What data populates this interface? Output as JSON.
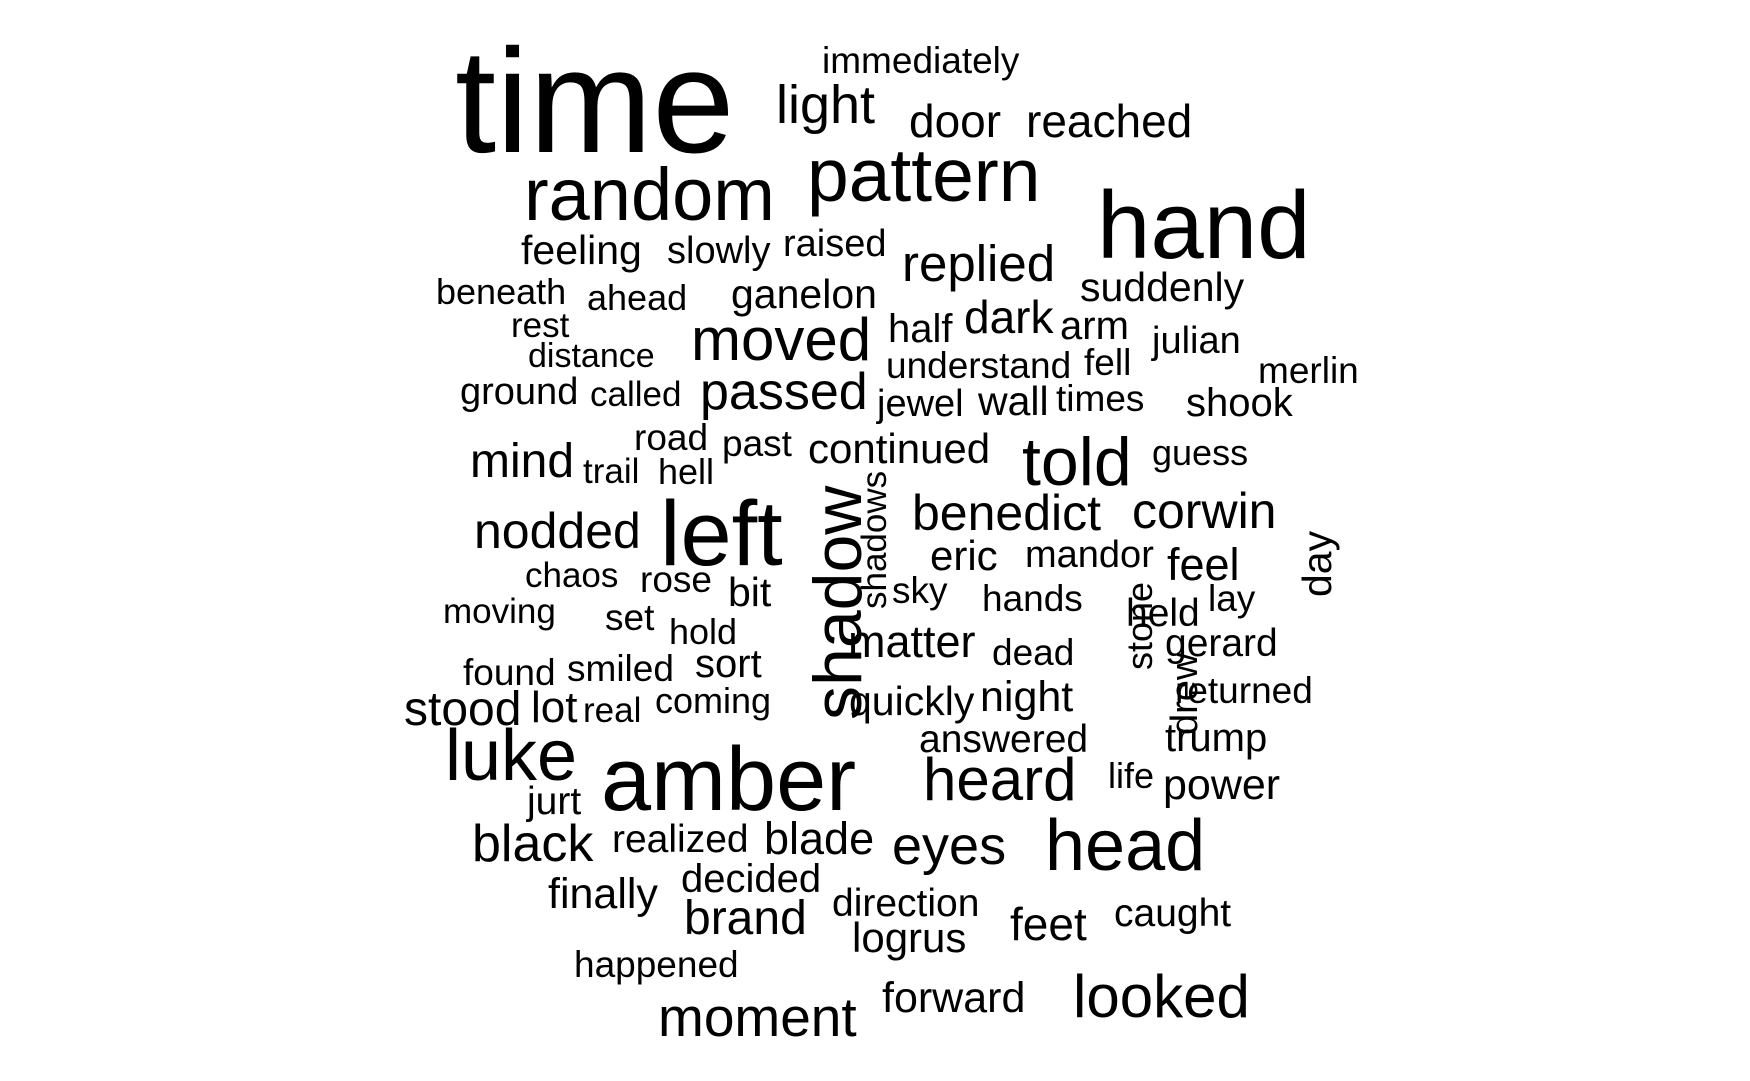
{
  "background_color": "#ffffff",
  "text_color": "#000000",
  "words": [
    "time",
    "immediately",
    "light",
    "door",
    "reached",
    "pattern",
    "random",
    "hand",
    "feeling",
    "slowly",
    "raised",
    "replied",
    "beneath",
    "ahead",
    "ganelon",
    "suddenly",
    "rest",
    "half",
    "dark",
    "arm",
    "julian",
    "distance",
    "moved",
    "understand",
    "fell",
    "merlin",
    "ground",
    "called",
    "passed",
    "jewel",
    "wall",
    "times",
    "shook",
    "road",
    "past",
    "continued",
    "told",
    "guess",
    "mind",
    "trail",
    "hell",
    "shadow",
    "shadows",
    "left",
    "nodded",
    "benedict",
    "corwin",
    "day",
    "eric",
    "mandor",
    "feel",
    "chaos",
    "rose",
    "bit",
    "sky",
    "lay",
    "moving",
    "set",
    "hands",
    "stone",
    "held",
    "hold",
    "matter",
    "dead",
    "gerard",
    "drew",
    "found",
    "smiled",
    "sort",
    "stood",
    "lot",
    "real",
    "coming",
    "quickly",
    "night",
    "returned",
    "answered",
    "trump",
    "luke",
    "amber",
    "heard",
    "life",
    "power",
    "jurt",
    "black",
    "realized",
    "blade",
    "eyes",
    "head",
    "finally",
    "decided",
    "direction",
    "brand",
    "logrus",
    "feet",
    "caught",
    "happened",
    "forward",
    "looked",
    "moment"
  ]
}
